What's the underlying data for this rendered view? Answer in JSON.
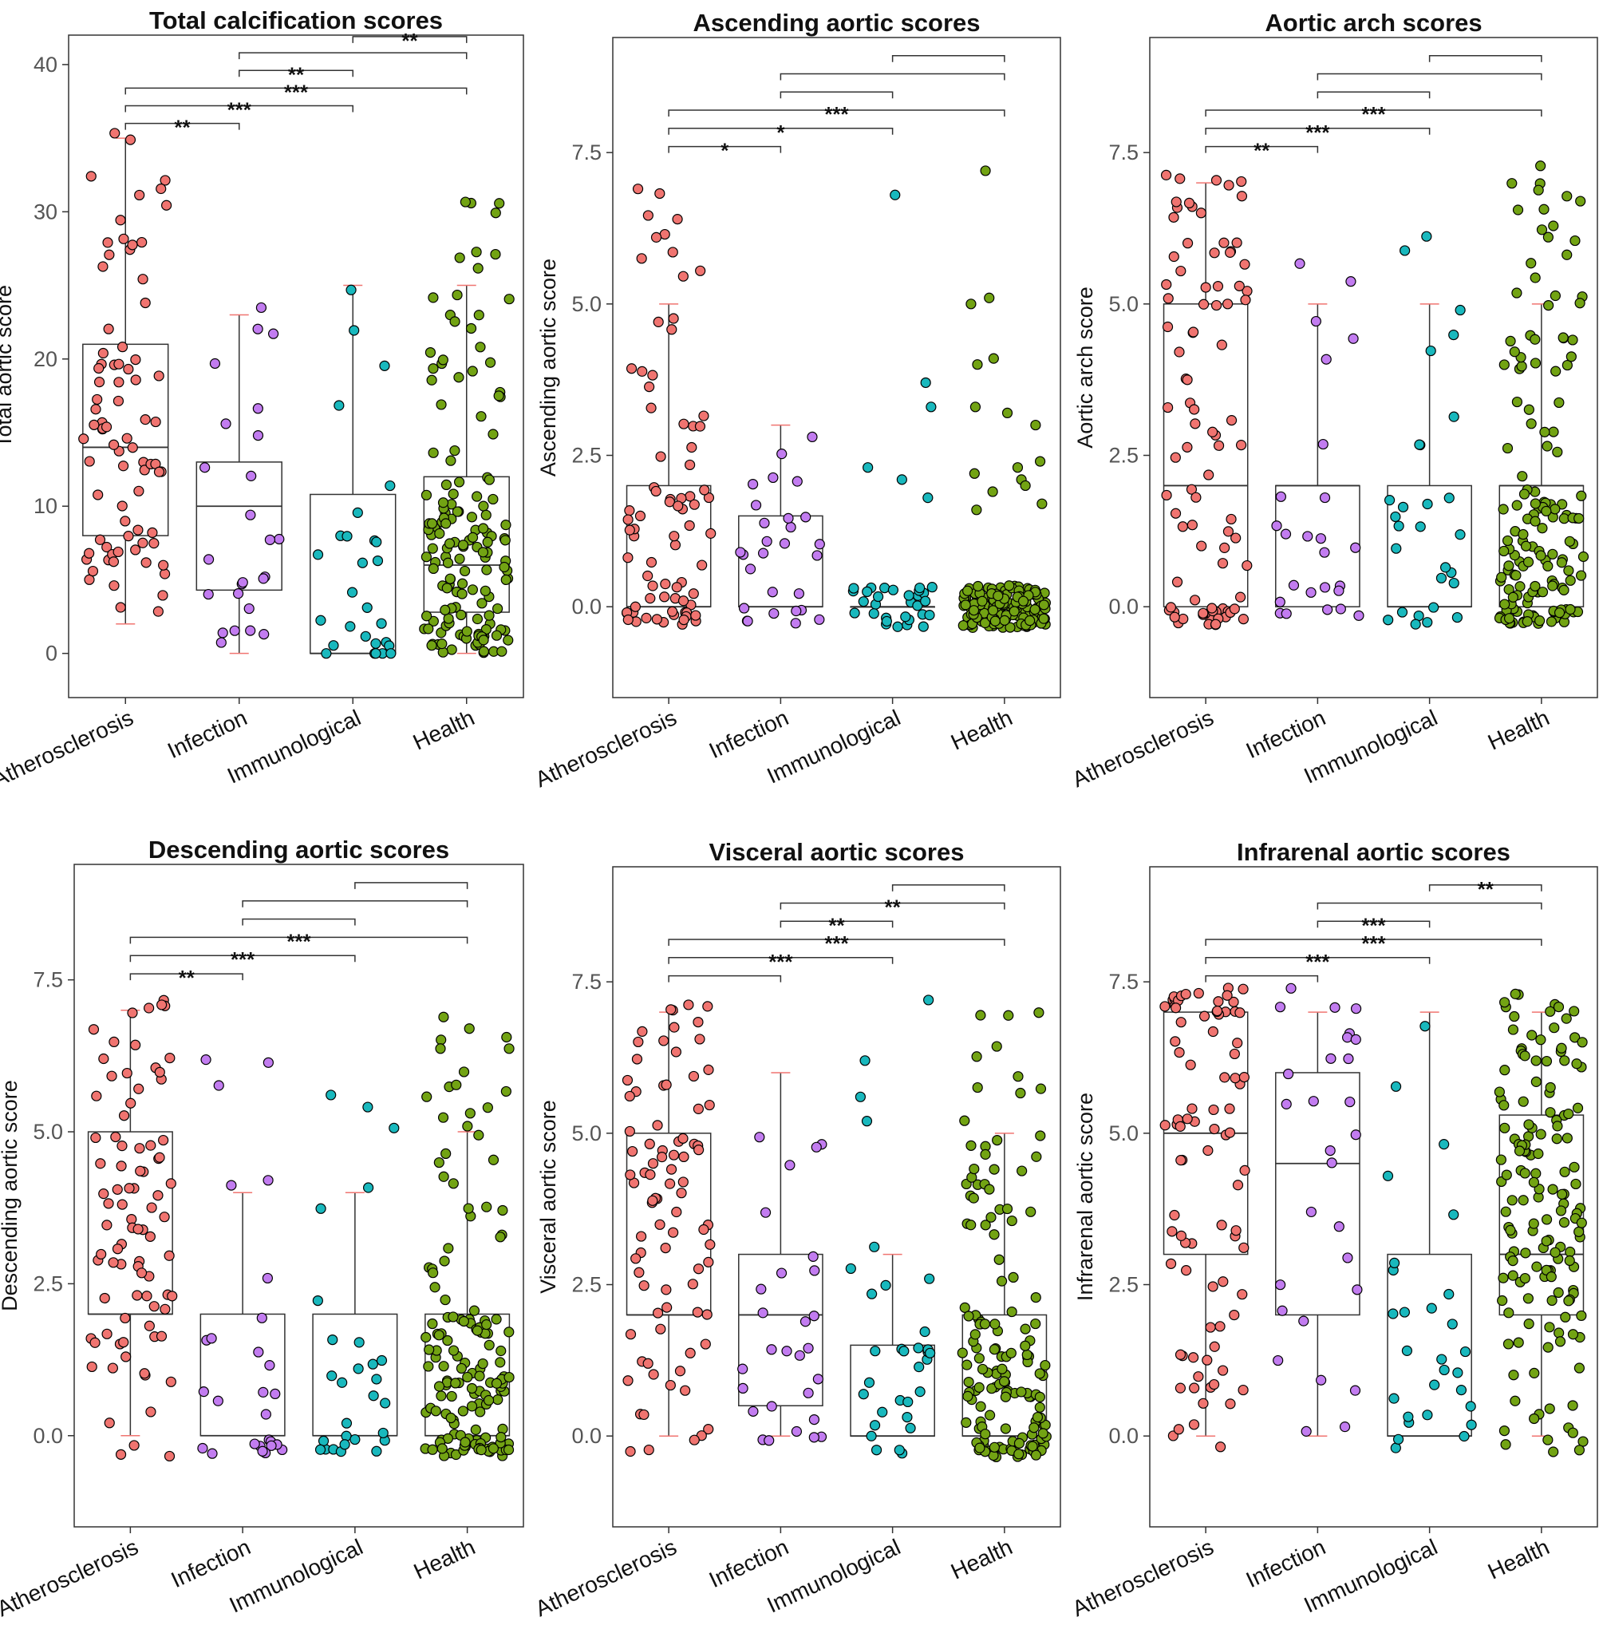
{
  "colors": {
    "Atherosclerosis": "#f07470",
    "Infection": "#c27cf0",
    "Immunological": "#19b8bd",
    "Health": "#72a313",
    "whisker_cap": "#f07470"
  },
  "chart_data": [
    {
      "type": "box",
      "title": "Total calcification scores",
      "ylabel": "Total aortic score",
      "ylim": [
        -3,
        42
      ],
      "yticks": [
        0,
        10,
        20,
        30,
        40
      ],
      "ytick_labels": [
        "0",
        "10",
        "20",
        "30",
        "40"
      ],
      "categories": [
        "Atherosclerosis",
        "Infection",
        "Immunological",
        "Health"
      ],
      "boxes": [
        {
          "min": 2,
          "q1": 8,
          "median": 14,
          "q3": 21,
          "max": 35,
          "n": 80,
          "lo": 1.8,
          "hi": 35.5
        },
        {
          "min": 0,
          "q1": 4.3,
          "median": 10,
          "q3": 13,
          "max": 23,
          "n": 25,
          "lo": 0,
          "hi": 23.5
        },
        {
          "min": 0,
          "q1": 0,
          "median": 0,
          "q3": 10.8,
          "max": 25,
          "n": 28,
          "lo": 0,
          "hi": 29
        },
        {
          "min": 0,
          "q1": 2.8,
          "median": 6,
          "q3": 12,
          "max": 25,
          "n": 150,
          "lo": 0,
          "hi": 31
        }
      ],
      "significance": [
        {
          "from": 0,
          "to": 1,
          "y": 36,
          "label": "**"
        },
        {
          "from": 0,
          "to": 2,
          "y": 37.2,
          "label": "***"
        },
        {
          "from": 0,
          "to": 3,
          "y": 38.4,
          "label": "***"
        },
        {
          "from": 1,
          "to": 2,
          "y": 39.6,
          "label": "**"
        },
        {
          "from": 1,
          "to": 3,
          "y": 40.8,
          "label": ""
        },
        {
          "from": 2,
          "to": 3,
          "y": 41.9,
          "label": "**"
        }
      ]
    },
    {
      "type": "box",
      "title": "Ascending aortic scores",
      "ylabel": "Ascending aortic score",
      "ylim": [
        -1.5,
        9.4
      ],
      "yticks": [
        0,
        2.5,
        5,
        7.5
      ],
      "ytick_labels": [
        "0.0",
        "2.5",
        "5.0",
        "7.5"
      ],
      "categories": [
        "Atherosclerosis",
        "Infection",
        "Immunological",
        "Health"
      ],
      "boxes": [
        {
          "min": 0,
          "q1": 0,
          "median": 0,
          "q3": 2,
          "max": 5,
          "n": 75,
          "lo": -0.3,
          "hi": 6.9,
          "outliers": [
            6.9,
            6.4,
            6.1
          ]
        },
        {
          "min": 0,
          "q1": 0,
          "median": 0,
          "q3": 1.5,
          "max": 3,
          "n": 28,
          "lo": -0.3,
          "hi": 3.7
        },
        {
          "min": 0,
          "q1": 0,
          "median": 0,
          "q3": 0,
          "max": 0,
          "n": 30,
          "lo": -0.3,
          "hi": 0.4,
          "outliers": [
            6.8,
            3.7,
            3.3,
            2.3,
            2.1,
            1.8
          ]
        },
        {
          "min": 0,
          "q1": 0,
          "median": 0,
          "q3": 0,
          "max": 0,
          "n": 150,
          "lo": -0.35,
          "hi": 0.4,
          "outliers": [
            7.2,
            5.1,
            5.0,
            4.1,
            4.0,
            3.3,
            3.0,
            2.4,
            2.3,
            2.2,
            2.1,
            2.0,
            1.9,
            1.7,
            1.6,
            3.2
          ]
        }
      ],
      "significance": [
        {
          "from": 0,
          "to": 1,
          "y": 7.6,
          "label": "*"
        },
        {
          "from": 0,
          "to": 2,
          "y": 7.9,
          "label": "*"
        },
        {
          "from": 0,
          "to": 3,
          "y": 8.2,
          "label": "***"
        },
        {
          "from": 1,
          "to": 2,
          "y": 8.5,
          "label": ""
        },
        {
          "from": 1,
          "to": 3,
          "y": 8.8,
          "label": ""
        },
        {
          "from": 2,
          "to": 3,
          "y": 9.1,
          "label": ""
        }
      ]
    },
    {
      "type": "box",
      "title": "Aortic arch scores",
      "ylabel": "Aortic arch score",
      "ylim": [
        -1.5,
        9.4
      ],
      "yticks": [
        0,
        2.5,
        5,
        7.5
      ],
      "ytick_labels": [
        "0.0",
        "2.5",
        "5.0",
        "7.5"
      ],
      "categories": [
        "Atherosclerosis",
        "Infection",
        "Immunological",
        "Health"
      ],
      "boxes": [
        {
          "min": 0,
          "q1": 0,
          "median": 2,
          "q3": 5,
          "max": 7,
          "n": 90,
          "lo": -0.3,
          "hi": 7.3
        },
        {
          "min": 0,
          "q1": 0,
          "median": 2,
          "q3": 2,
          "max": 5,
          "n": 25,
          "lo": -0.2,
          "hi": 5.8
        },
        {
          "min": 0,
          "q1": 0,
          "median": 0,
          "q3": 2,
          "max": 5,
          "n": 28,
          "lo": -0.3,
          "hi": 6.7
        },
        {
          "min": 0,
          "q1": 0,
          "median": 2,
          "q3": 2,
          "max": 5,
          "n": 150,
          "lo": -0.3,
          "hi": 7.3
        }
      ],
      "significance": [
        {
          "from": 0,
          "to": 1,
          "y": 7.6,
          "label": "**"
        },
        {
          "from": 0,
          "to": 2,
          "y": 7.9,
          "label": "***"
        },
        {
          "from": 0,
          "to": 3,
          "y": 8.2,
          "label": "***"
        },
        {
          "from": 1,
          "to": 2,
          "y": 8.5,
          "label": ""
        },
        {
          "from": 1,
          "to": 3,
          "y": 8.8,
          "label": ""
        },
        {
          "from": 2,
          "to": 3,
          "y": 9.1,
          "label": ""
        }
      ]
    },
    {
      "type": "box",
      "title": "Descending aortic scores",
      "ylabel": "Descending aortic score",
      "ylim": [
        -1.5,
        9.4
      ],
      "yticks": [
        0,
        2.5,
        5,
        7.5
      ],
      "ytick_labels": [
        "0.0",
        "2.5",
        "5.0",
        "7.5"
      ],
      "categories": [
        "Atherosclerosis",
        "Infection",
        "Immunological",
        "Health"
      ],
      "boxes": [
        {
          "min": 0,
          "q1": 2,
          "median": 2,
          "q3": 5,
          "max": 7,
          "n": 85,
          "lo": -0.35,
          "hi": 7.4
        },
        {
          "min": 0,
          "q1": 0,
          "median": 0,
          "q3": 2,
          "max": 4,
          "n": 28,
          "lo": -0.3,
          "hi": 6.2
        },
        {
          "min": 0,
          "q1": 0,
          "median": 0,
          "q3": 2,
          "max": 4,
          "n": 28,
          "lo": -0.3,
          "hi": 7.1
        },
        {
          "min": 0,
          "q1": 0,
          "median": 0,
          "q3": 2,
          "max": 5,
          "n": 150,
          "lo": -0.35,
          "hi": 7.0
        }
      ],
      "significance": [
        {
          "from": 0,
          "to": 1,
          "y": 7.6,
          "label": "**"
        },
        {
          "from": 0,
          "to": 2,
          "y": 7.9,
          "label": "***"
        },
        {
          "from": 0,
          "to": 3,
          "y": 8.2,
          "label": "***"
        },
        {
          "from": 1,
          "to": 2,
          "y": 8.5,
          "label": ""
        },
        {
          "from": 1,
          "to": 3,
          "y": 8.8,
          "label": ""
        },
        {
          "from": 2,
          "to": 3,
          "y": 9.1,
          "label": ""
        }
      ]
    },
    {
      "type": "box",
      "title": "Visceral aortic scores",
      "ylabel": "Visceral aortic score",
      "ylim": [
        -1.5,
        9.4
      ],
      "yticks": [
        0,
        2.5,
        5,
        7.5
      ],
      "ytick_labels": [
        "0.0",
        "2.5",
        "5.0",
        "7.5"
      ],
      "categories": [
        "Atherosclerosis",
        "Infection",
        "Immunological",
        "Health"
      ],
      "boxes": [
        {
          "min": 0,
          "q1": 2,
          "median": 2,
          "q3": 5,
          "max": 7,
          "n": 85,
          "lo": -0.3,
          "hi": 7.4
        },
        {
          "min": 0,
          "q1": 0.5,
          "median": 2,
          "q3": 3,
          "max": 6,
          "n": 28,
          "lo": -0.3,
          "hi": 6.2
        },
        {
          "min": 0,
          "q1": 0,
          "median": 0,
          "q3": 1.5,
          "max": 3,
          "n": 28,
          "lo": -0.35,
          "hi": 3.3,
          "outliers": [
            7.2,
            6.2,
            5.6,
            5.2
          ]
        },
        {
          "min": 0,
          "q1": 0,
          "median": 0,
          "q3": 2,
          "max": 5,
          "n": 150,
          "lo": -0.35,
          "hi": 7.3
        }
      ],
      "significance": [
        {
          "from": 0,
          "to": 1,
          "y": 7.6,
          "label": ""
        },
        {
          "from": 0,
          "to": 2,
          "y": 7.9,
          "label": "***"
        },
        {
          "from": 0,
          "to": 3,
          "y": 8.2,
          "label": "***"
        },
        {
          "from": 1,
          "to": 2,
          "y": 8.5,
          "label": "**"
        },
        {
          "from": 1,
          "to": 3,
          "y": 8.8,
          "label": "**"
        },
        {
          "from": 2,
          "to": 3,
          "y": 9.1,
          "label": ""
        }
      ]
    },
    {
      "type": "box",
      "title": "Infrarenal aortic scores",
      "ylabel": "Infrarenal aortic score",
      "ylim": [
        -1.5,
        9.4
      ],
      "yticks": [
        0,
        2.5,
        5,
        7.5
      ],
      "ytick_labels": [
        "0.0",
        "2.5",
        "5.0",
        "7.5"
      ],
      "categories": [
        "Atherosclerosis",
        "Infection",
        "Immunological",
        "Health"
      ],
      "boxes": [
        {
          "min": 0,
          "q1": 3,
          "median": 5,
          "q3": 7,
          "max": 7,
          "n": 85,
          "lo": -0.3,
          "hi": 7.4
        },
        {
          "min": 0,
          "q1": 2,
          "median": 4.5,
          "q3": 6,
          "max": 7,
          "n": 28,
          "lo": -0.1,
          "hi": 7.4
        },
        {
          "min": 0,
          "q1": 0,
          "median": 0,
          "q3": 3,
          "max": 7,
          "n": 28,
          "lo": -0.2,
          "hi": 7.2
        },
        {
          "min": 0,
          "q1": 2,
          "median": 3,
          "q3": 5.3,
          "max": 7,
          "n": 150,
          "lo": -0.35,
          "hi": 7.3
        }
      ],
      "significance": [
        {
          "from": 0,
          "to": 1,
          "y": 7.6,
          "label": ""
        },
        {
          "from": 0,
          "to": 2,
          "y": 7.9,
          "label": "***"
        },
        {
          "from": 0,
          "to": 3,
          "y": 8.2,
          "label": "***"
        },
        {
          "from": 1,
          "to": 2,
          "y": 8.5,
          "label": "***"
        },
        {
          "from": 1,
          "to": 3,
          "y": 8.8,
          "label": ""
        },
        {
          "from": 2,
          "to": 3,
          "y": 9.1,
          "label": "**"
        }
      ]
    }
  ]
}
